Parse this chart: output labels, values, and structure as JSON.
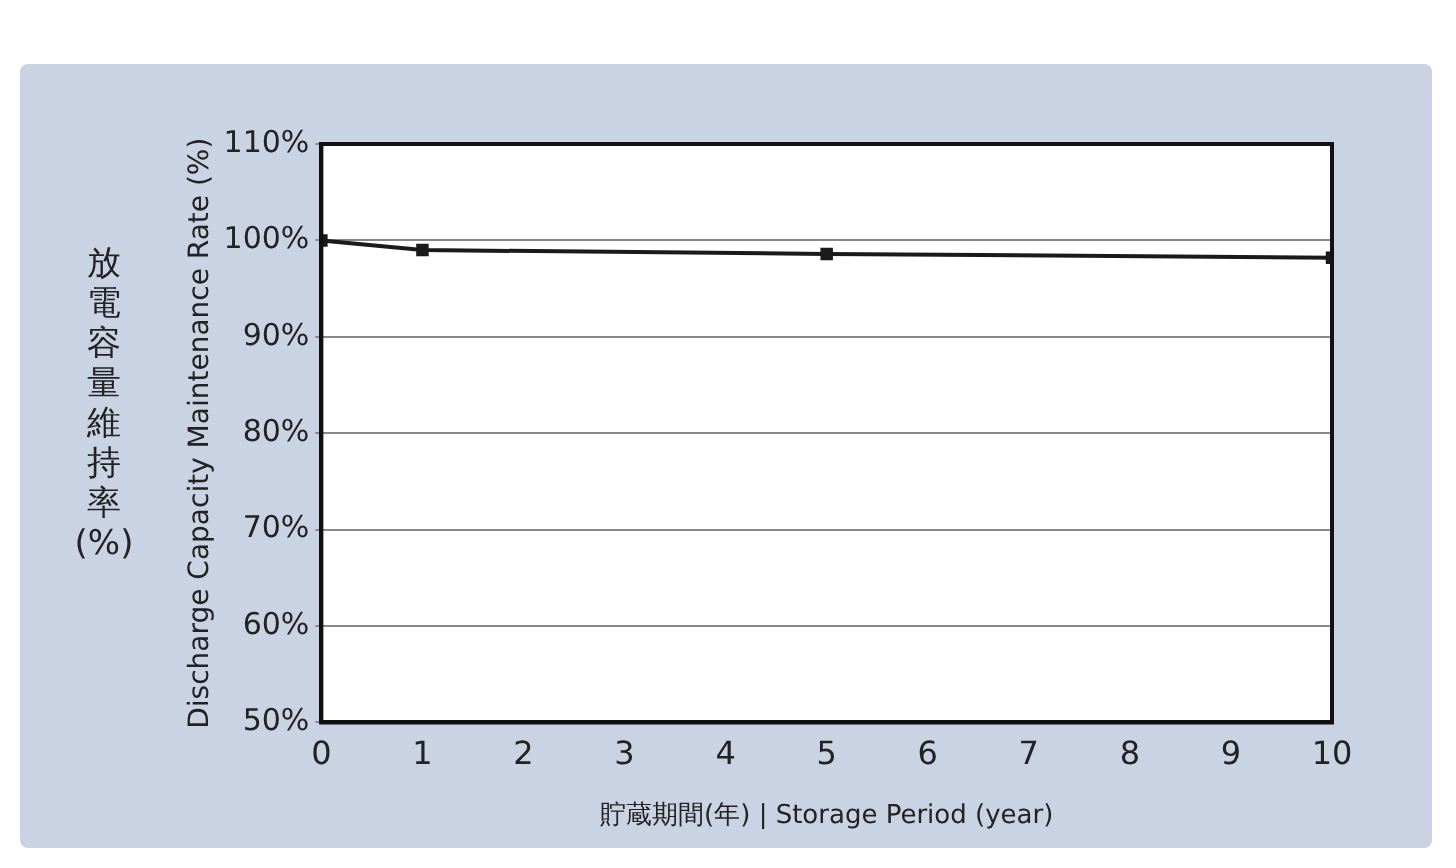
{
  "chart_data": {
    "type": "line",
    "xlabel": "貯蔵期間(年) | Storage Period (year)",
    "ylabel": "Discharge Capacity Maintenance Rate (%)",
    "annotations": [
      "放電容量維持率(%)"
    ],
    "x": [
      0,
      1,
      5,
      10
    ],
    "series": [
      {
        "color": "#1a1a1a",
        "values": [
          100,
          99,
          98.6,
          98.2
        ]
      }
    ],
    "xlim": [
      0,
      10
    ],
    "xticks": [
      0,
      1,
      2,
      3,
      4,
      5,
      6,
      7,
      8,
      9,
      10
    ],
    "ylim": [
      50,
      110
    ],
    "yticks": [
      {
        "value": 50,
        "label": "50%"
      },
      {
        "value": 60,
        "label": "60%"
      },
      {
        "value": 70,
        "label": "70%"
      },
      {
        "value": 80,
        "label": "80%"
      },
      {
        "value": 90,
        "label": "90%"
      },
      {
        "value": 100,
        "label": "100%"
      },
      {
        "value": 110,
        "label": "110%"
      }
    ],
    "grid": "y",
    "marker": "square",
    "line_style": "solid"
  }
}
